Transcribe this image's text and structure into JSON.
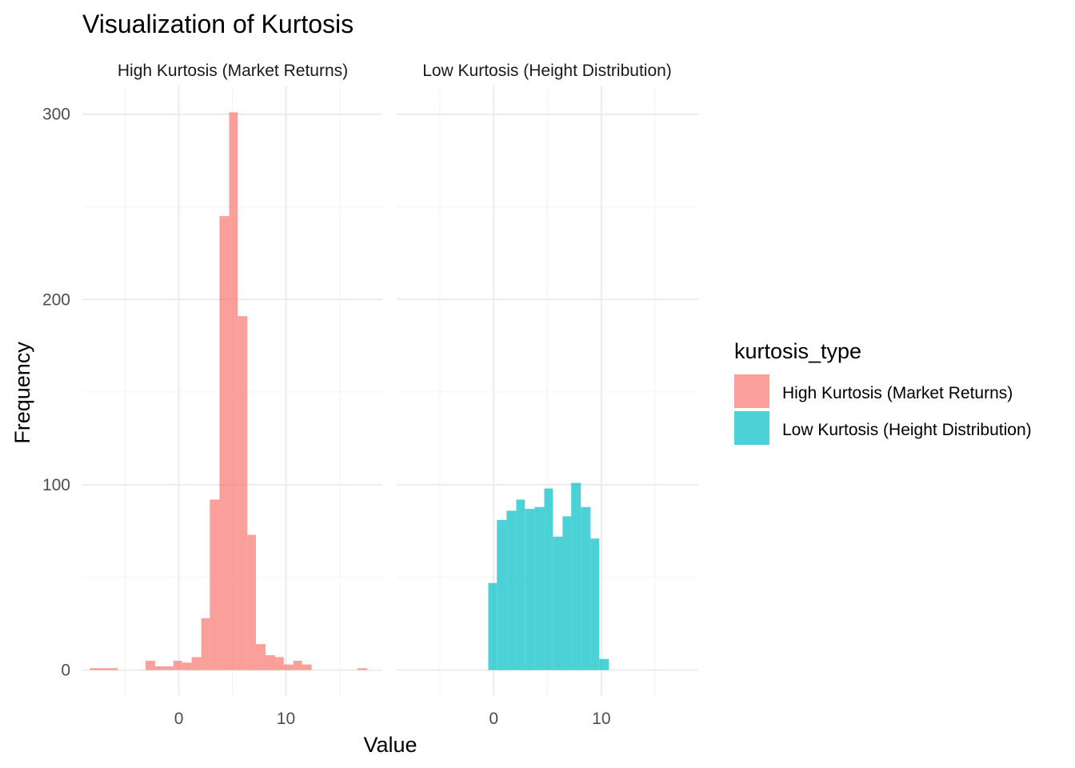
{
  "chart_data": {
    "type": "bar",
    "title": "Visualization of Kurtosis",
    "xlabel": "Value",
    "ylabel": "Frequency",
    "xlim": [
      -9,
      19
    ],
    "ylim": [
      -14,
      315
    ],
    "x_ticks": [
      0,
      10
    ],
    "y_ticks": [
      0,
      100,
      200,
      300
    ],
    "grid": true,
    "legend": {
      "title": "kurtosis_type",
      "placement": "right"
    },
    "panels": [
      {
        "strip": "High Kurtosis (Market Returns)",
        "series": "High Kurtosis (Market Returns)",
        "color": "#F8766D",
        "bins": [
          {
            "x0": -8.3,
            "x1": -7.4,
            "value": 1
          },
          {
            "x0": -7.4,
            "x1": -6.5,
            "value": 1
          },
          {
            "x0": -6.5,
            "x1": -5.7,
            "value": 1
          },
          {
            "x0": -3.1,
            "x1": -2.2,
            "value": 5
          },
          {
            "x0": -2.2,
            "x1": -1.4,
            "value": 2
          },
          {
            "x0": -1.4,
            "x1": -0.5,
            "value": 2
          },
          {
            "x0": -0.5,
            "x1": 0.3,
            "value": 5
          },
          {
            "x0": 0.3,
            "x1": 1.2,
            "value": 4
          },
          {
            "x0": 1.2,
            "x1": 2.1,
            "value": 7
          },
          {
            "x0": 2.1,
            "x1": 2.9,
            "value": 28
          },
          {
            "x0": 2.9,
            "x1": 3.8,
            "value": 92
          },
          {
            "x0": 3.8,
            "x1": 4.7,
            "value": 245
          },
          {
            "x0": 4.7,
            "x1": 5.5,
            "value": 301
          },
          {
            "x0": 5.5,
            "x1": 6.4,
            "value": 191
          },
          {
            "x0": 6.4,
            "x1": 7.2,
            "value": 73
          },
          {
            "x0": 7.2,
            "x1": 8.1,
            "value": 14
          },
          {
            "x0": 8.1,
            "x1": 9.0,
            "value": 8
          },
          {
            "x0": 9.0,
            "x1": 9.8,
            "value": 7
          },
          {
            "x0": 9.8,
            "x1": 10.7,
            "value": 3
          },
          {
            "x0": 10.7,
            "x1": 11.5,
            "value": 5
          },
          {
            "x0": 11.5,
            "x1": 12.4,
            "value": 3
          },
          {
            "x0": 16.7,
            "x1": 17.6,
            "value": 1
          }
        ]
      },
      {
        "strip": "Low Kurtosis (Height Distribution)",
        "series": "Low Kurtosis (Height Distribution)",
        "color": "#00BFC4",
        "bins": [
          {
            "x0": -0.5,
            "x1": 0.3,
            "value": 47
          },
          {
            "x0": 0.3,
            "x1": 1.2,
            "value": 81
          },
          {
            "x0": 1.2,
            "x1": 2.1,
            "value": 86
          },
          {
            "x0": 2.1,
            "x1": 2.9,
            "value": 92
          },
          {
            "x0": 2.9,
            "x1": 3.8,
            "value": 87
          },
          {
            "x0": 3.8,
            "x1": 4.7,
            "value": 88
          },
          {
            "x0": 4.7,
            "x1": 5.5,
            "value": 98
          },
          {
            "x0": 5.5,
            "x1": 6.4,
            "value": 72
          },
          {
            "x0": 6.4,
            "x1": 7.2,
            "value": 83
          },
          {
            "x0": 7.2,
            "x1": 8.1,
            "value": 101
          },
          {
            "x0": 8.1,
            "x1": 9.0,
            "value": 88
          },
          {
            "x0": 9.0,
            "x1": 9.8,
            "value": 71
          },
          {
            "x0": 9.8,
            "x1": 10.7,
            "value": 6
          }
        ]
      }
    ]
  }
}
